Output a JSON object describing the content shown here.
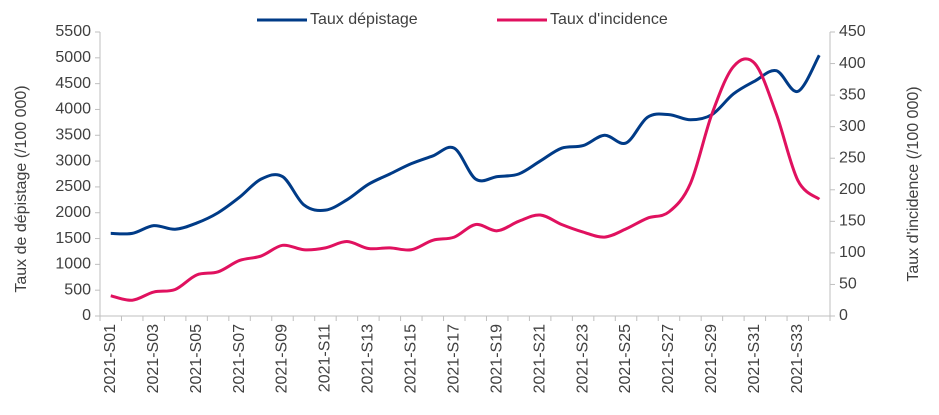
{
  "chart_data": {
    "type": "line",
    "categories": [
      "2021-S01",
      null,
      "2021-S03",
      null,
      "2021-S05",
      null,
      "2021-S07",
      null,
      "2021-S09",
      null,
      "2021-S11",
      null,
      "2021-S13",
      null,
      "2021-S15",
      null,
      "2021-S17",
      null,
      "2021-S19",
      null,
      "2021-S21",
      null,
      "2021-S23",
      null,
      "2021-S25",
      null,
      "2021-S27",
      null,
      "2021-S29",
      null,
      "2021-S31",
      null,
      "2021-S33",
      null
    ],
    "series": [
      {
        "name": "Taux dépistage",
        "color": "#003b87",
        "values": [
          1600,
          1600,
          1750,
          1680,
          1800,
          2000,
          2300,
          2650,
          2700,
          2150,
          2050,
          2250,
          2550,
          2750,
          2950,
          3100,
          3250,
          2650,
          2700,
          2750,
          3000,
          3250,
          3300,
          3500,
          3350,
          3850,
          3900,
          3800,
          3900,
          4300,
          4550,
          4750,
          4350,
          5050
        ]
      },
      {
        "name": "Taux d'incidence",
        "color": "#e0115f",
        "axis": "y2",
        "values": [
          32,
          25,
          38,
          42,
          65,
          70,
          88,
          95,
          112,
          105,
          108,
          118,
          107,
          108,
          105,
          120,
          125,
          145,
          135,
          150,
          160,
          145,
          133,
          125,
          138,
          155,
          165,
          210,
          320,
          395,
          400,
          320,
          215,
          185
        ]
      }
    ],
    "ylabel": "Taux de dépistage (/100 000)",
    "y2label": "Taux d'incidence (/100 000)",
    "ylim": [
      0,
      5500
    ],
    "yticks": [
      0,
      500,
      1000,
      1500,
      2000,
      2500,
      3000,
      3500,
      4000,
      4500,
      5000,
      5500
    ],
    "y2lim": [
      0,
      450
    ],
    "y2ticks": [
      0,
      50,
      100,
      150,
      200,
      250,
      300,
      350,
      400,
      450
    ],
    "grid": false,
    "legend": "top"
  }
}
